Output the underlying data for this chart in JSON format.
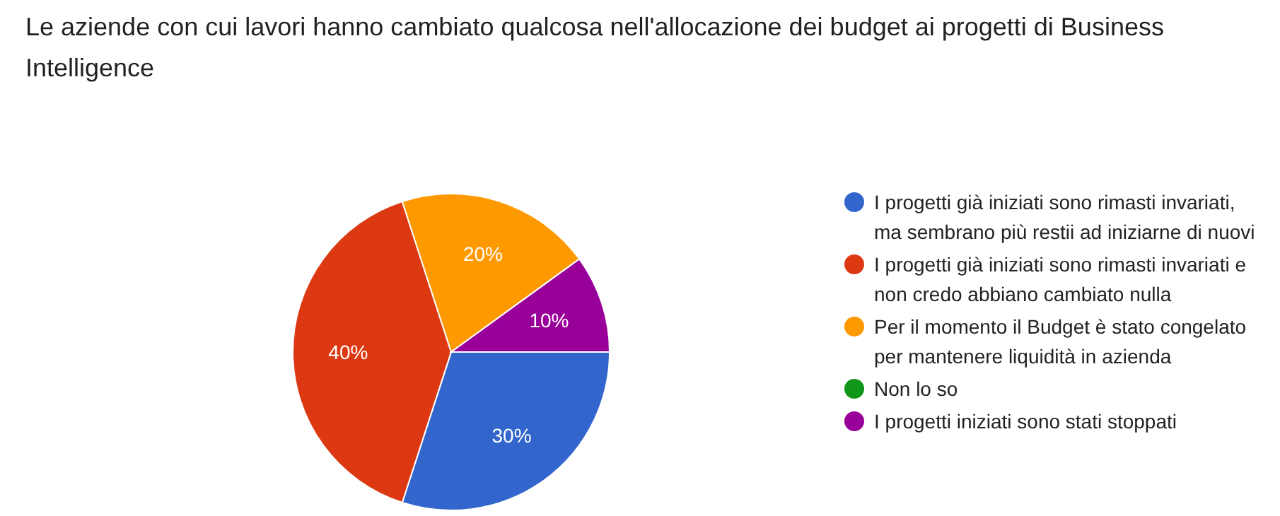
{
  "chart_data": {
    "type": "pie",
    "title": "Le aziende con cui lavori hanno cambiato qualcosa nell'allocazione dei budget ai progetti di Business Intelligence",
    "categories": [
      "I progetti già iniziati sono rimasti invariati, ma sembrano più restii ad iniziarne di nuovi",
      "I progetti già iniziati sono rimasti invariati e non credo abbiano cambiato nulla",
      "Per il momento il Budget è stato congelato per mantenere liquidità in azienda",
      "Non lo so",
      "I progetti iniziati sono stati stoppati"
    ],
    "values": [
      30,
      40,
      20,
      0,
      10
    ],
    "colors": [
      "#3366cc",
      "#dc3912",
      "#ff9900",
      "#109618",
      "#990099"
    ],
    "value_labels": [
      "30%",
      "40%",
      "20%",
      null,
      "10%"
    ],
    "legend": "right"
  }
}
